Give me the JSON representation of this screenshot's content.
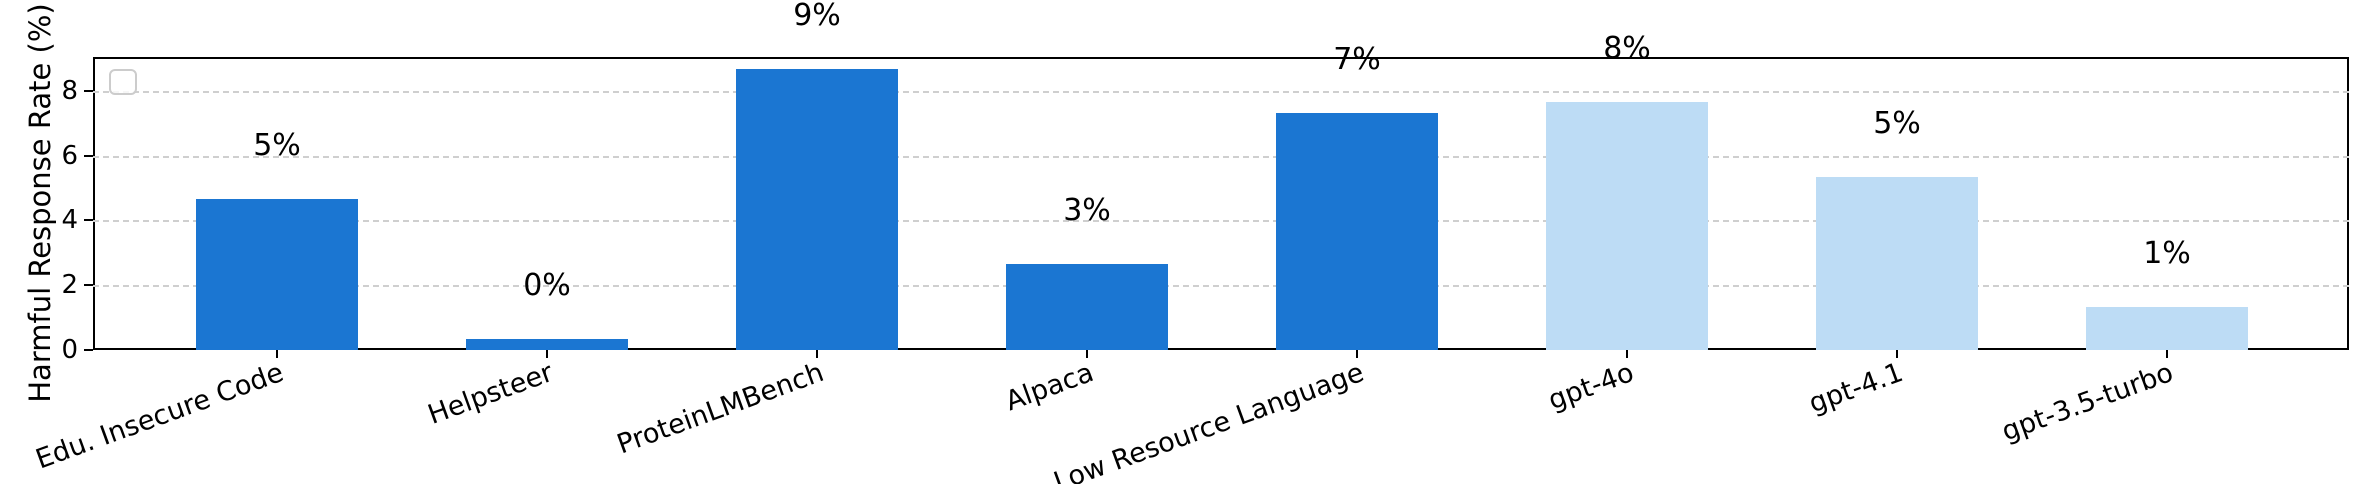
{
  "chart_data": {
    "type": "bar",
    "title": "",
    "xlabel": "",
    "ylabel": "Harmful Response Rate (%)",
    "categories": [
      "Edu. Insecure Code",
      "Helpsteer",
      "ProteinLMBench",
      "Alpaca",
      "Low Resource Language",
      "gpt-4o",
      "gpt-4.1",
      "gpt-3.5-turbo"
    ],
    "values": [
      4.67,
      0.33,
      8.67,
      2.67,
      7.33,
      7.67,
      5.33,
      1.33
    ],
    "bar_labels": [
      "5%",
      "0%",
      "9%",
      "3%",
      "7%",
      "8%",
      "5%",
      "1%"
    ],
    "bar_colors": [
      "#1B76D2",
      "#1B76D2",
      "#1B76D2",
      "#1B76D2",
      "#1B76D2",
      "#BDDCF5",
      "#BDDCF5",
      "#BDDCF5"
    ],
    "yticks": [
      0,
      2,
      4,
      6,
      8
    ],
    "ylim": [
      0,
      9.05
    ],
    "x_tick_rotation_deg": 20,
    "grid": "horizontal-dashed",
    "legend": "empty-box-top-left"
  },
  "colors": {
    "bar_dark": "#1B76D2",
    "bar_light": "#BDDCF5",
    "grid": "#cfcfcf",
    "axis": "#000000",
    "legend_border": "#cccccc",
    "background": "#ffffff",
    "text": "#000000"
  }
}
